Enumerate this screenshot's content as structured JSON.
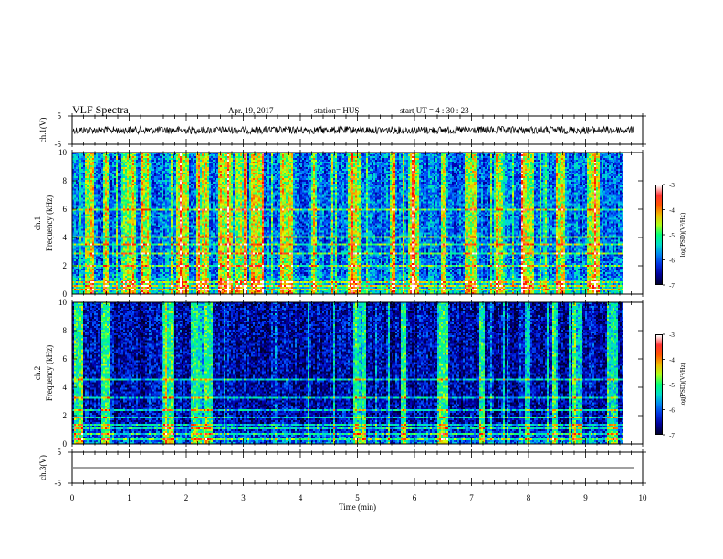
{
  "header": {
    "title": "VLF Spectra",
    "date": "Apr. 19, 2017",
    "station_label": "station= HUS",
    "start_label": "start  UT  =   4  : 30 : 23"
  },
  "chart_data": [
    {
      "type": "line",
      "panel": "ch1-waveform",
      "ylabel": "ch.1(V)",
      "ylim": [
        -5,
        5
      ],
      "yticks": [
        5,
        -5
      ],
      "xlim": [
        0,
        10
      ],
      "mean_level": 0,
      "noise_amplitude": 0.6
    },
    {
      "type": "heatmap",
      "panel": "ch1-spectrogram",
      "ylabel": "ch.1\nFrequency  (kHz)",
      "ylim": [
        0,
        10
      ],
      "yticks": [
        "0",
        "2",
        "4",
        "6",
        "8",
        "10"
      ],
      "xlim": [
        0,
        10
      ],
      "colorbar": {
        "label": "log(PSD)(V²/Hz)",
        "ticks": [
          "-3",
          "-4",
          "-5",
          "-6",
          "-7"
        ],
        "range": [
          -7,
          -3
        ]
      },
      "typical_log_psd": -5.9,
      "horizontal_lines_khz": [
        0.3,
        0.5,
        0.8,
        2.0,
        2.8,
        3.5,
        4.0,
        6.0
      ],
      "burst_times_min": [
        0.3,
        0.6,
        1.0,
        1.3,
        1.9,
        2.0,
        2.3,
        2.7,
        3.0,
        3.3,
        3.8,
        4.3,
        5.0,
        5.7,
        6.1,
        6.6,
        7.1,
        7.6,
        8.1,
        8.7,
        9.3
      ]
    },
    {
      "type": "heatmap",
      "panel": "ch2-spectrogram",
      "ylabel": "ch.2\nFrequency  (kHz)",
      "ylim": [
        0,
        10
      ],
      "yticks": [
        "0",
        "2",
        "4",
        "6",
        "8",
        "10"
      ],
      "xlim": [
        0,
        10
      ],
      "colorbar": {
        "label": "log(PSD)(V²/Hz)",
        "ticks": [
          "-3",
          "-4",
          "-5",
          "-6",
          "-7"
        ],
        "range": [
          -7,
          -3
        ]
      },
      "typical_log_psd": -6.5,
      "horizontal_lines_khz": [
        0.3,
        0.6,
        1.0,
        1.3,
        1.8,
        2.4,
        3.2,
        4.5
      ],
      "burst_times_min": [
        0.1,
        0.6,
        1.7,
        2.2,
        2.4,
        5.1,
        5.9,
        6.6,
        7.3,
        8.1,
        8.6,
        9.0,
        9.6
      ]
    },
    {
      "type": "line",
      "panel": "ch3-waveform",
      "ylabel": "ch.3(V)",
      "ylim": [
        -5,
        5
      ],
      "yticks": [
        5,
        -5
      ],
      "xlim": [
        0,
        10
      ],
      "mean_level": 0,
      "noise_amplitude": 0
    }
  ],
  "xaxis": {
    "label": "Time  (min)",
    "ticks": [
      "0",
      "1",
      "2",
      "3",
      "4",
      "5",
      "6",
      "7",
      "8",
      "9",
      "10"
    ],
    "range": [
      0,
      10
    ],
    "data_end": 9.85
  },
  "colorscale": [
    "#000030",
    "#0000b4",
    "#0050ff",
    "#00d4e0",
    "#00ff78",
    "#d8ff00",
    "#ff9000",
    "#ff0000",
    "#ffffff"
  ]
}
